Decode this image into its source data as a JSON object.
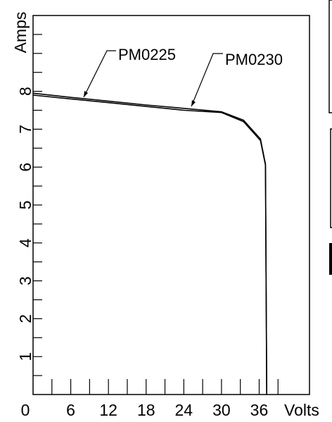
{
  "chart_data": {
    "type": "line",
    "xlabel": "Volts",
    "ylabel": "Amps",
    "xlim": [
      0,
      42
    ],
    "ylim": [
      0,
      10
    ],
    "x_ticks": [
      0,
      6,
      12,
      18,
      24,
      30,
      36
    ],
    "y_ticks": [
      1,
      2,
      3,
      4,
      5,
      6,
      7,
      8
    ],
    "grid": false,
    "series": [
      {
        "name": "PM0225",
        "points": [
          [
            0,
            7.9
          ],
          [
            6,
            7.8
          ],
          [
            12,
            7.7
          ],
          [
            18,
            7.6
          ],
          [
            24,
            7.5
          ],
          [
            30,
            7.44
          ],
          [
            33.5,
            7.2
          ],
          [
            36.2,
            6.7
          ],
          [
            37,
            6.05
          ],
          [
            37.2,
            0
          ]
        ]
      },
      {
        "name": "PM0230",
        "points": [
          [
            0,
            7.95
          ],
          [
            6,
            7.84
          ],
          [
            12,
            7.74
          ],
          [
            18,
            7.64
          ],
          [
            24,
            7.55
          ],
          [
            30,
            7.46
          ],
          [
            33.5,
            7.24
          ],
          [
            36.2,
            6.74
          ],
          [
            37,
            6.08
          ],
          [
            37.2,
            0
          ]
        ]
      }
    ]
  }
}
